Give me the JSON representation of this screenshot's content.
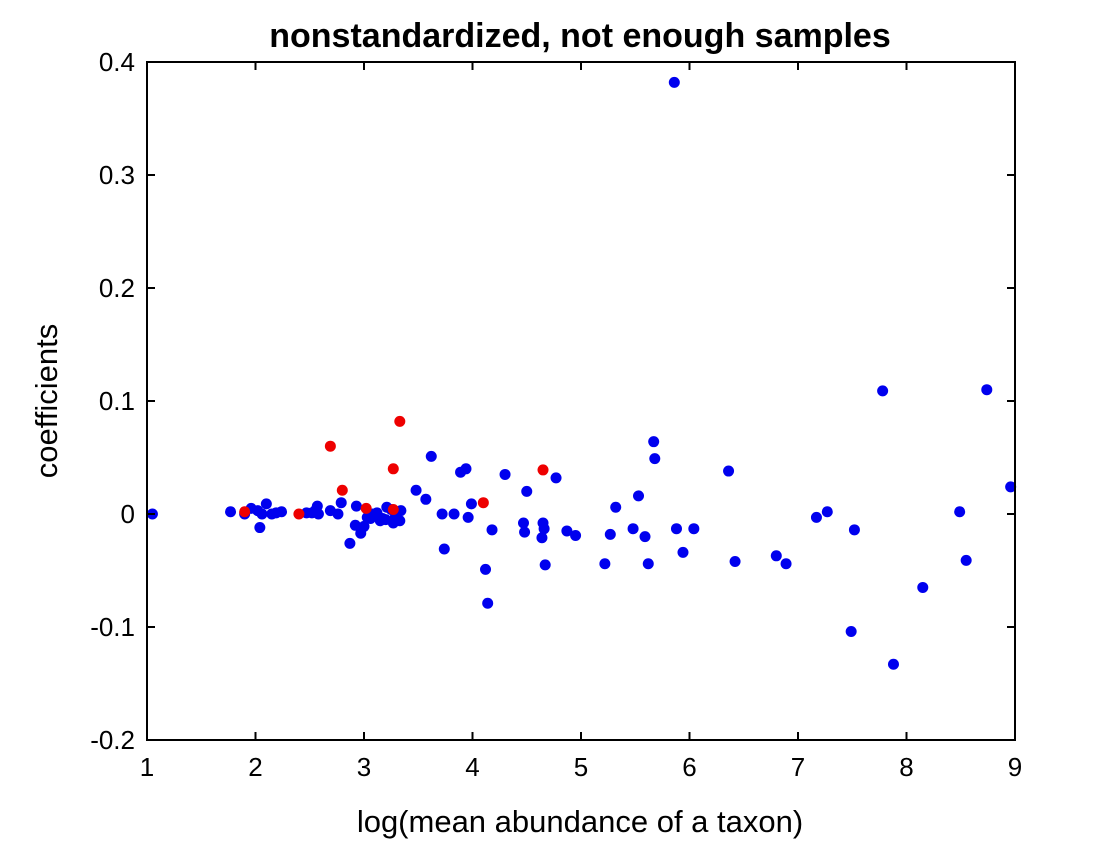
{
  "chart_data": {
    "type": "scatter",
    "title": "nonstandardized, not enough samples",
    "xlabel": "log(mean abundance of a taxon)",
    "ylabel": "coefficients",
    "xlim": [
      1,
      9
    ],
    "ylim": [
      -0.2,
      0.4
    ],
    "xticks": [
      1,
      2,
      3,
      4,
      5,
      6,
      7,
      8,
      9
    ],
    "xtick_labels": [
      "1",
      "2",
      "3",
      "4",
      "5",
      "6",
      "7",
      "8",
      "9"
    ],
    "yticks": [
      -0.2,
      -0.1,
      0,
      0.1,
      0.2,
      0.3,
      0.4
    ],
    "ytick_labels": [
      "-0.2",
      "-0.1",
      "0",
      "0.1",
      "0.2",
      "0.3",
      "0.4"
    ],
    "grid": false,
    "box": true,
    "series": [
      {
        "color": "#0000ee",
        "points": [
          [
            1.05,
            0.0
          ],
          [
            1.77,
            0.002
          ],
          [
            1.9,
            0.0
          ],
          [
            1.96,
            0.005
          ],
          [
            2.02,
            0.003
          ],
          [
            2.04,
            -0.012
          ],
          [
            2.06,
            0.0
          ],
          [
            2.1,
            0.009
          ],
          [
            2.15,
            0.0
          ],
          [
            2.19,
            0.001
          ],
          [
            2.24,
            0.002
          ],
          [
            2.47,
            0.001
          ],
          [
            2.52,
            0.001
          ],
          [
            2.55,
            0.003
          ],
          [
            2.57,
            0.007
          ],
          [
            2.58,
            0.0
          ],
          [
            2.69,
            0.003
          ],
          [
            2.76,
            0.0
          ],
          [
            2.79,
            0.01
          ],
          [
            2.87,
            -0.026
          ],
          [
            2.92,
            -0.01
          ],
          [
            2.93,
            0.007
          ],
          [
            2.97,
            -0.017
          ],
          [
            3.0,
            -0.011
          ],
          [
            3.03,
            -0.003
          ],
          [
            3.06,
            -0.004
          ],
          [
            3.08,
            0.0
          ],
          [
            3.12,
            0.001
          ],
          [
            3.15,
            -0.006
          ],
          [
            3.17,
            -0.004
          ],
          [
            3.2,
            -0.005
          ],
          [
            3.21,
            0.006
          ],
          [
            3.25,
            0.004
          ],
          [
            3.27,
            -0.008
          ],
          [
            3.29,
            -0.002
          ],
          [
            3.33,
            -0.006
          ],
          [
            3.34,
            0.003
          ],
          [
            3.48,
            0.021
          ],
          [
            3.57,
            0.013
          ],
          [
            3.62,
            0.051
          ],
          [
            3.72,
            0.0
          ],
          [
            3.74,
            -0.031
          ],
          [
            3.83,
            0.0
          ],
          [
            3.89,
            0.037
          ],
          [
            3.94,
            0.04
          ],
          [
            3.96,
            -0.003
          ],
          [
            3.99,
            0.009
          ],
          [
            4.12,
            -0.049
          ],
          [
            4.14,
            -0.079
          ],
          [
            4.18,
            -0.014
          ],
          [
            4.3,
            0.035
          ],
          [
            4.47,
            -0.008
          ],
          [
            4.48,
            -0.016
          ],
          [
            4.5,
            0.02
          ],
          [
            4.64,
            -0.021
          ],
          [
            4.65,
            -0.008
          ],
          [
            4.66,
            -0.013
          ],
          [
            4.67,
            -0.045
          ],
          [
            4.77,
            0.032
          ],
          [
            4.87,
            -0.015
          ],
          [
            4.95,
            -0.019
          ],
          [
            5.22,
            -0.044
          ],
          [
            5.27,
            -0.018
          ],
          [
            5.32,
            0.006
          ],
          [
            5.48,
            -0.013
          ],
          [
            5.53,
            0.016
          ],
          [
            5.59,
            -0.02
          ],
          [
            5.62,
            -0.044
          ],
          [
            5.67,
            0.064
          ],
          [
            5.68,
            0.049
          ],
          [
            5.86,
            0.382
          ],
          [
            5.88,
            -0.013
          ],
          [
            5.94,
            -0.034
          ],
          [
            6.04,
            -0.013
          ],
          [
            6.36,
            0.038
          ],
          [
            6.42,
            -0.042
          ],
          [
            6.8,
            -0.037
          ],
          [
            6.89,
            -0.044
          ],
          [
            7.17,
            -0.003
          ],
          [
            7.27,
            0.002
          ],
          [
            7.49,
            -0.104
          ],
          [
            7.52,
            -0.014
          ],
          [
            7.78,
            0.109
          ],
          [
            7.88,
            -0.133
          ],
          [
            8.15,
            -0.065
          ],
          [
            8.49,
            0.002
          ],
          [
            8.55,
            -0.041
          ],
          [
            8.74,
            0.11
          ],
          [
            8.96,
            0.024
          ]
        ]
      },
      {
        "color": "#ee0000",
        "points": [
          [
            1.9,
            0.002
          ],
          [
            2.4,
            0.0
          ],
          [
            2.69,
            0.06
          ],
          [
            2.8,
            0.021
          ],
          [
            3.02,
            0.005
          ],
          [
            3.27,
            0.04
          ],
          [
            3.27,
            0.004
          ],
          [
            3.33,
            0.082
          ],
          [
            4.1,
            0.01
          ],
          [
            4.65,
            0.039
          ]
        ]
      }
    ]
  }
}
